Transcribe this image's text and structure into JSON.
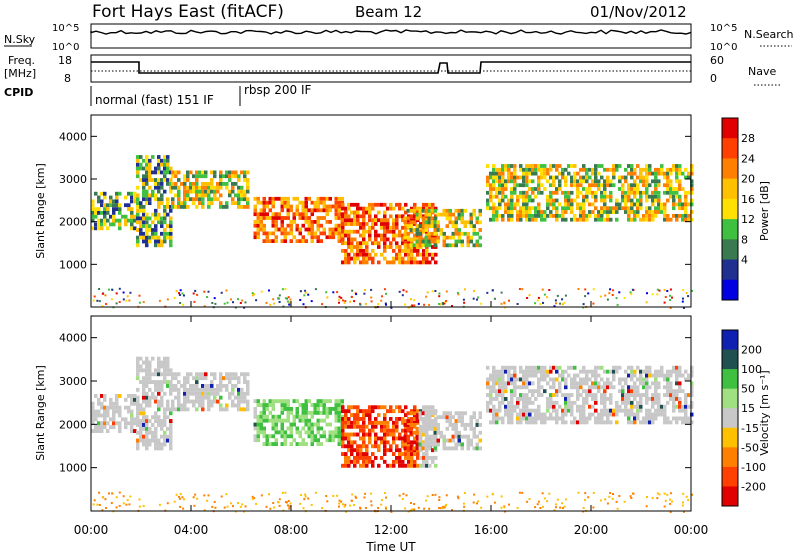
{
  "header": {
    "title": "Fort Hays East (fitACF)",
    "beam": "Beam 12",
    "date": "01/Nov/2012"
  },
  "status_panel": {
    "nsky_label": "N.Sky",
    "nsky_ticks": [
      "10^5",
      "10^0"
    ],
    "nsearch_label": "N.Search",
    "nsearch_ticks": [
      "10^5",
      "10^0"
    ],
    "freq_label": "Freq.",
    "freq_unit": "[MHz]",
    "freq_ticks": [
      "18",
      "8"
    ],
    "nave_label": "Nave",
    "nave_ticks": [
      "60",
      "0"
    ],
    "cpid_label": "CPID",
    "cpid_modes": [
      "normal (fast) 151 IF",
      "rbsp 200 IF"
    ]
  },
  "chart_data": [
    {
      "type": "heatmap",
      "panel": "power",
      "ylabel": "Slant Range [km]",
      "yticks": [
        1000,
        2000,
        3000,
        4000
      ],
      "ylim": [
        0,
        4500
      ],
      "xlim_hours": [
        0,
        24
      ],
      "colorbar": {
        "label": "Power [dB]",
        "ticks": [
          "28",
          "24",
          "20",
          "16",
          "12",
          "8",
          "4"
        ],
        "colors": [
          "#e00000",
          "#ff4000",
          "#ff8000",
          "#ffc000",
          "#ffe000",
          "#40c040",
          "#3a7a50",
          "#203090",
          "#0000e0"
        ]
      }
    },
    {
      "type": "heatmap",
      "panel": "velocity",
      "ylabel": "Slant Range [km]",
      "yticks": [
        1000,
        2000,
        3000,
        4000
      ],
      "ylim": [
        0,
        4500
      ],
      "xlim_hours": [
        0,
        24
      ],
      "colorbar": {
        "label": "Velocity [m s⁻¹]",
        "ticks": [
          "200",
          "100",
          "50",
          "15",
          "-15",
          "-50",
          "-100",
          "-200"
        ],
        "colors": [
          "#1020b0",
          "#205050",
          "#40c040",
          "#a0e080",
          "#c8c8c8",
          "#ffc000",
          "#ff8000",
          "#ff4000",
          "#e00000"
        ]
      }
    }
  ],
  "time_axis": {
    "ticks": [
      "00:00",
      "04:00",
      "08:00",
      "12:00",
      "16:00",
      "20:00",
      "00:00"
    ],
    "label": "Time UT"
  }
}
